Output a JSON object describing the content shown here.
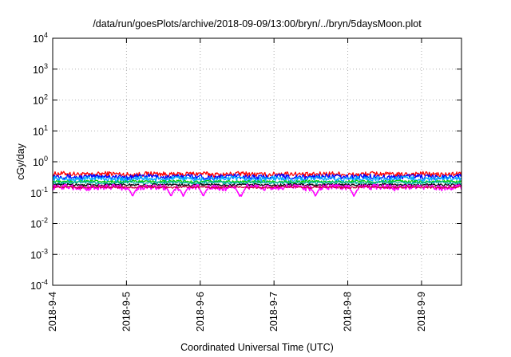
{
  "chart_data": {
    "type": "line",
    "title": "/data/run/goesPlots/archive/2018-09-09/13:00/bryn/../bryn/5daysMoon.plot",
    "xlabel": "Coordinated Universal Time (UTC)",
    "ylabel": "cGy/day",
    "yscale": "log",
    "ylim": [
      0.0001,
      10000
    ],
    "yticks": [
      {
        "base": "10",
        "exp": "4",
        "value": 10000
      },
      {
        "base": "10",
        "exp": "3",
        "value": 1000
      },
      {
        "base": "10",
        "exp": "2",
        "value": 100
      },
      {
        "base": "10",
        "exp": "1",
        "value": 10
      },
      {
        "base": "10",
        "exp": "0",
        "value": 1
      },
      {
        "base": "10",
        "exp": "-1",
        "value": 0.1
      },
      {
        "base": "10",
        "exp": "-2",
        "value": 0.01
      },
      {
        "base": "10",
        "exp": "-3",
        "value": 0.001
      },
      {
        "base": "10",
        "exp": "-4",
        "value": 0.0001
      }
    ],
    "xlim": [
      "2018-09-04T00:00",
      "2018-09-09T13:00"
    ],
    "xticks": [
      {
        "label": "2018-9-4",
        "date": "2018-09-04T00:00"
      },
      {
        "label": "2018-9-5",
        "date": "2018-09-05T00:00"
      },
      {
        "label": "2018-9-6",
        "date": "2018-09-06T00:00"
      },
      {
        "label": "2018-9-7",
        "date": "2018-09-07T00:00"
      },
      {
        "label": "2018-9-8",
        "date": "2018-09-08T00:00"
      },
      {
        "label": "2018-9-9",
        "date": "2018-09-09T00:00"
      }
    ],
    "grid": true,
    "series": [
      {
        "color": "#ff0000",
        "base": 0.4,
        "amp": 0.07,
        "dips": false
      },
      {
        "color": "#0000ff",
        "base": 0.33,
        "amp": 0.06,
        "dips": false
      },
      {
        "color": "#00aaff",
        "base": 0.28,
        "amp": 0.05,
        "dips": false
      },
      {
        "color": "#00cc00",
        "base": 0.23,
        "amp": 0.02,
        "dips": false
      },
      {
        "color": "#00b0a0",
        "base": 0.21,
        "amp": 0.02,
        "dips": false
      },
      {
        "color": "#0a0a0a",
        "base": 0.18,
        "amp": 0.015,
        "dips": false
      },
      {
        "color": "#ff00ff",
        "base": 0.15,
        "amp": 0.03,
        "dips": true
      },
      {
        "color": "#cc0044",
        "base": 0.15,
        "amp": 0.01,
        "dips": false
      }
    ],
    "dip_dates": [
      "2018-09-05T02:00",
      "2018-09-05T14:30",
      "2018-09-05T18:30",
      "2018-09-06T01:00",
      "2018-09-06T12:50",
      "2018-09-06T13:20",
      "2018-09-07T13:30",
      "2018-09-08T02:00"
    ]
  }
}
